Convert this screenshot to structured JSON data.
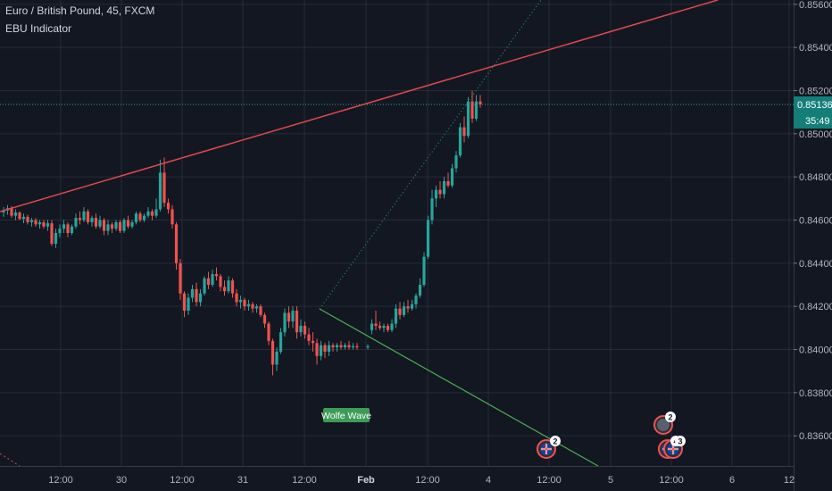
{
  "header": {
    "title": "Euro / British Pound, 45, FXCM",
    "indicator": "EBU Indicator"
  },
  "price": {
    "last": "0.85136",
    "countdown": "35:49"
  },
  "colors": {
    "background": "#131722",
    "up": "#26a69a",
    "down": "#ef5350",
    "grid": "#262b3b",
    "trendline": "#e0484b",
    "wolfe_line": "#4caf50",
    "dotted_line": "#26a69a",
    "label_bg": "#3d9c57",
    "price_tag": "#147f79"
  },
  "annotations": {
    "wolfe_label": "Wolfe Wave"
  },
  "events": [
    {
      "badge": "2",
      "flag": "uk"
    },
    {
      "badge": "2",
      "flag": "dark"
    },
    {
      "badge": "4",
      "flag": "uk"
    },
    {
      "badge": "3",
      "flag": "uk"
    }
  ],
  "chart_data": {
    "type": "candlestick",
    "ylim": [
      0.8346,
      0.8562
    ],
    "y_ticks": [
      "0.85600",
      "0.85400",
      "0.85200",
      "0.85000",
      "0.84800",
      "0.84600",
      "0.84400",
      "0.84200",
      "0.84000",
      "0.83800",
      "0.83600"
    ],
    "x_ticks": [
      "12:00",
      "30",
      "12:00",
      "31",
      "12:00",
      "Feb",
      "12:00",
      "4",
      "12:00",
      "5",
      "12:00",
      "6",
      "12"
    ],
    "grid": true,
    "series": [
      {
        "name": "",
        "candles": [
          [
            0.84635,
            0.8466,
            0.84615,
            0.84645
          ],
          [
            0.84645,
            0.8467,
            0.84625,
            0.84655
          ],
          [
            0.84655,
            0.84665,
            0.8461,
            0.8462
          ],
          [
            0.8462,
            0.8465,
            0.846,
            0.84635
          ],
          [
            0.84635,
            0.8464,
            0.846,
            0.84605
          ],
          [
            0.84605,
            0.8463,
            0.84585,
            0.84615
          ],
          [
            0.84615,
            0.84625,
            0.8458,
            0.8459
          ],
          [
            0.8459,
            0.8461,
            0.8457,
            0.846
          ],
          [
            0.846,
            0.8461,
            0.8457,
            0.8458
          ],
          [
            0.8458,
            0.846,
            0.8456,
            0.8459
          ],
          [
            0.8459,
            0.846,
            0.8456,
            0.8457
          ],
          [
            0.8457,
            0.846,
            0.8455,
            0.84585
          ],
          [
            0.84585,
            0.846,
            0.8448,
            0.8449
          ],
          [
            0.8449,
            0.8456,
            0.8447,
            0.8454
          ],
          [
            0.8454,
            0.8458,
            0.8452,
            0.8456
          ],
          [
            0.8456,
            0.846,
            0.8454,
            0.8458
          ],
          [
            0.8458,
            0.8459,
            0.8452,
            0.8454
          ],
          [
            0.8454,
            0.8458,
            0.8453,
            0.8457
          ],
          [
            0.8457,
            0.8463,
            0.8456,
            0.8461
          ],
          [
            0.8461,
            0.8464,
            0.8458,
            0.846
          ],
          [
            0.846,
            0.8466,
            0.8459,
            0.8464
          ],
          [
            0.8464,
            0.8465,
            0.8458,
            0.8459
          ],
          [
            0.8459,
            0.8462,
            0.8457,
            0.8461
          ],
          [
            0.8461,
            0.8463,
            0.8456,
            0.8457
          ],
          [
            0.8457,
            0.8462,
            0.8456,
            0.846
          ],
          [
            0.846,
            0.8461,
            0.8453,
            0.8455
          ],
          [
            0.8455,
            0.846,
            0.8453,
            0.8458
          ],
          [
            0.8458,
            0.8459,
            0.8454,
            0.8456
          ],
          [
            0.8456,
            0.846,
            0.8455,
            0.8459
          ],
          [
            0.8459,
            0.846,
            0.8454,
            0.8455
          ],
          [
            0.8455,
            0.8461,
            0.8454,
            0.846
          ],
          [
            0.846,
            0.8462,
            0.8456,
            0.8457
          ],
          [
            0.8457,
            0.846,
            0.8456,
            0.8459
          ],
          [
            0.8459,
            0.8464,
            0.8458,
            0.8463
          ],
          [
            0.8463,
            0.8464,
            0.8459,
            0.846
          ],
          [
            0.846,
            0.8463,
            0.8459,
            0.8462
          ],
          [
            0.8462,
            0.8466,
            0.8461,
            0.8464
          ],
          [
            0.8464,
            0.8465,
            0.846,
            0.8462
          ],
          [
            0.8462,
            0.847,
            0.8461,
            0.8465
          ],
          [
            0.8465,
            0.8488,
            0.8464,
            0.8482
          ],
          [
            0.8482,
            0.8489,
            0.8466,
            0.8468
          ],
          [
            0.8468,
            0.847,
            0.8463,
            0.8465
          ],
          [
            0.8465,
            0.8467,
            0.8456,
            0.8458
          ],
          [
            0.8458,
            0.8459,
            0.8437,
            0.844
          ],
          [
            0.844,
            0.8442,
            0.8423,
            0.8426
          ],
          [
            0.8426,
            0.8427,
            0.8415,
            0.8418
          ],
          [
            0.8418,
            0.8426,
            0.8416,
            0.8424
          ],
          [
            0.8424,
            0.843,
            0.8422,
            0.8428
          ],
          [
            0.8428,
            0.8431,
            0.842,
            0.8422
          ],
          [
            0.8422,
            0.8428,
            0.842,
            0.8426
          ],
          [
            0.8426,
            0.8434,
            0.8425,
            0.8433
          ],
          [
            0.8433,
            0.8436,
            0.8428,
            0.843
          ],
          [
            0.843,
            0.8437,
            0.8429,
            0.8435
          ],
          [
            0.8435,
            0.8438,
            0.8432,
            0.8434
          ],
          [
            0.8434,
            0.8435,
            0.8427,
            0.8429
          ],
          [
            0.8429,
            0.8432,
            0.8425,
            0.8427
          ],
          [
            0.8427,
            0.8434,
            0.8426,
            0.8432
          ],
          [
            0.8432,
            0.8433,
            0.8424,
            0.8426
          ],
          [
            0.8426,
            0.8428,
            0.842,
            0.8422
          ],
          [
            0.8422,
            0.8425,
            0.8419,
            0.8423
          ],
          [
            0.8423,
            0.8424,
            0.8418,
            0.842
          ],
          [
            0.842,
            0.8423,
            0.8418,
            0.8421
          ],
          [
            0.8421,
            0.8422,
            0.8417,
            0.8419
          ],
          [
            0.8419,
            0.8421,
            0.8417,
            0.842
          ],
          [
            0.842,
            0.8421,
            0.8415,
            0.8416
          ],
          [
            0.8416,
            0.8417,
            0.841,
            0.8412
          ],
          [
            0.8412,
            0.8413,
            0.8402,
            0.8404
          ],
          [
            0.8404,
            0.8405,
            0.8388,
            0.8393
          ],
          [
            0.8393,
            0.8401,
            0.839,
            0.8399
          ],
          [
            0.8399,
            0.841,
            0.8398,
            0.8408
          ],
          [
            0.8408,
            0.8419,
            0.8406,
            0.8417
          ],
          [
            0.8417,
            0.842,
            0.841,
            0.8413
          ],
          [
            0.8413,
            0.842,
            0.841,
            0.8418
          ],
          [
            0.8418,
            0.842,
            0.8405,
            0.8408
          ],
          [
            0.8408,
            0.8414,
            0.8406,
            0.8411
          ],
          [
            0.8411,
            0.8413,
            0.8405,
            0.8407
          ],
          [
            0.8407,
            0.841,
            0.8402,
            0.8404
          ],
          [
            0.8404,
            0.8408,
            0.8399,
            0.8403
          ],
          [
            0.8403,
            0.8405,
            0.8393,
            0.8397
          ],
          [
            0.8397,
            0.8404,
            0.8395,
            0.8402
          ],
          [
            0.8402,
            0.8403,
            0.8396,
            0.8399
          ],
          [
            0.8399,
            0.8404,
            0.8397,
            0.8402
          ],
          [
            0.8402,
            0.8403,
            0.8399,
            0.8401
          ],
          [
            0.8401,
            0.8403,
            0.8399,
            0.8402
          ],
          [
            0.8402,
            0.8404,
            0.84,
            0.8401
          ],
          [
            0.8401,
            0.8403,
            0.84,
            0.8402
          ],
          [
            0.8402,
            0.8404,
            0.84,
            0.8401
          ],
          [
            0.8401,
            0.8403,
            0.84,
            0.84015
          ],
          [
            0.84015,
            0.8403,
            0.84,
            0.8401
          ],
          [
            0.8401,
            0.84025,
            0.84,
            0.84015
          ],
          [
            0.8409,
            0.8414,
            0.8407,
            0.8412
          ],
          [
            0.8412,
            0.8418,
            0.8409,
            0.8411
          ],
          [
            0.8411,
            0.8413,
            0.8409,
            0.841
          ],
          [
            0.841,
            0.8412,
            0.8408,
            0.8411
          ],
          [
            0.8411,
            0.8412,
            0.8408,
            0.8409
          ],
          [
            0.8409,
            0.8414,
            0.8408,
            0.8412
          ],
          [
            0.8412,
            0.8421,
            0.841,
            0.8419
          ],
          [
            0.8419,
            0.8422,
            0.8414,
            0.8416
          ],
          [
            0.8416,
            0.8422,
            0.8415,
            0.842
          ],
          [
            0.842,
            0.8423,
            0.8417,
            0.8419
          ],
          [
            0.8419,
            0.8423,
            0.8418,
            0.8421
          ],
          [
            0.8421,
            0.8426,
            0.8419,
            0.8425
          ],
          [
            0.8425,
            0.8433,
            0.8424,
            0.843
          ],
          [
            0.843,
            0.8445,
            0.8429,
            0.8443
          ],
          [
            0.8443,
            0.8462,
            0.8442,
            0.846
          ],
          [
            0.846,
            0.8474,
            0.8458,
            0.847
          ],
          [
            0.847,
            0.8476,
            0.8466,
            0.8474
          ],
          [
            0.8474,
            0.8478,
            0.847,
            0.8472
          ],
          [
            0.8472,
            0.848,
            0.847,
            0.8478
          ],
          [
            0.8478,
            0.8482,
            0.8475,
            0.8476
          ],
          [
            0.8476,
            0.8486,
            0.8475,
            0.8484
          ],
          [
            0.8484,
            0.8492,
            0.8482,
            0.849
          ],
          [
            0.849,
            0.8505,
            0.8489,
            0.8503
          ],
          [
            0.8503,
            0.8508,
            0.8496,
            0.8499
          ],
          [
            0.8499,
            0.8517,
            0.8498,
            0.8515
          ],
          [
            0.8515,
            0.852,
            0.8505,
            0.8507
          ],
          [
            0.8507,
            0.8518,
            0.8506,
            0.8515
          ],
          [
            0.8515,
            0.8518,
            0.8512,
            0.85136
          ]
        ]
      }
    ]
  }
}
